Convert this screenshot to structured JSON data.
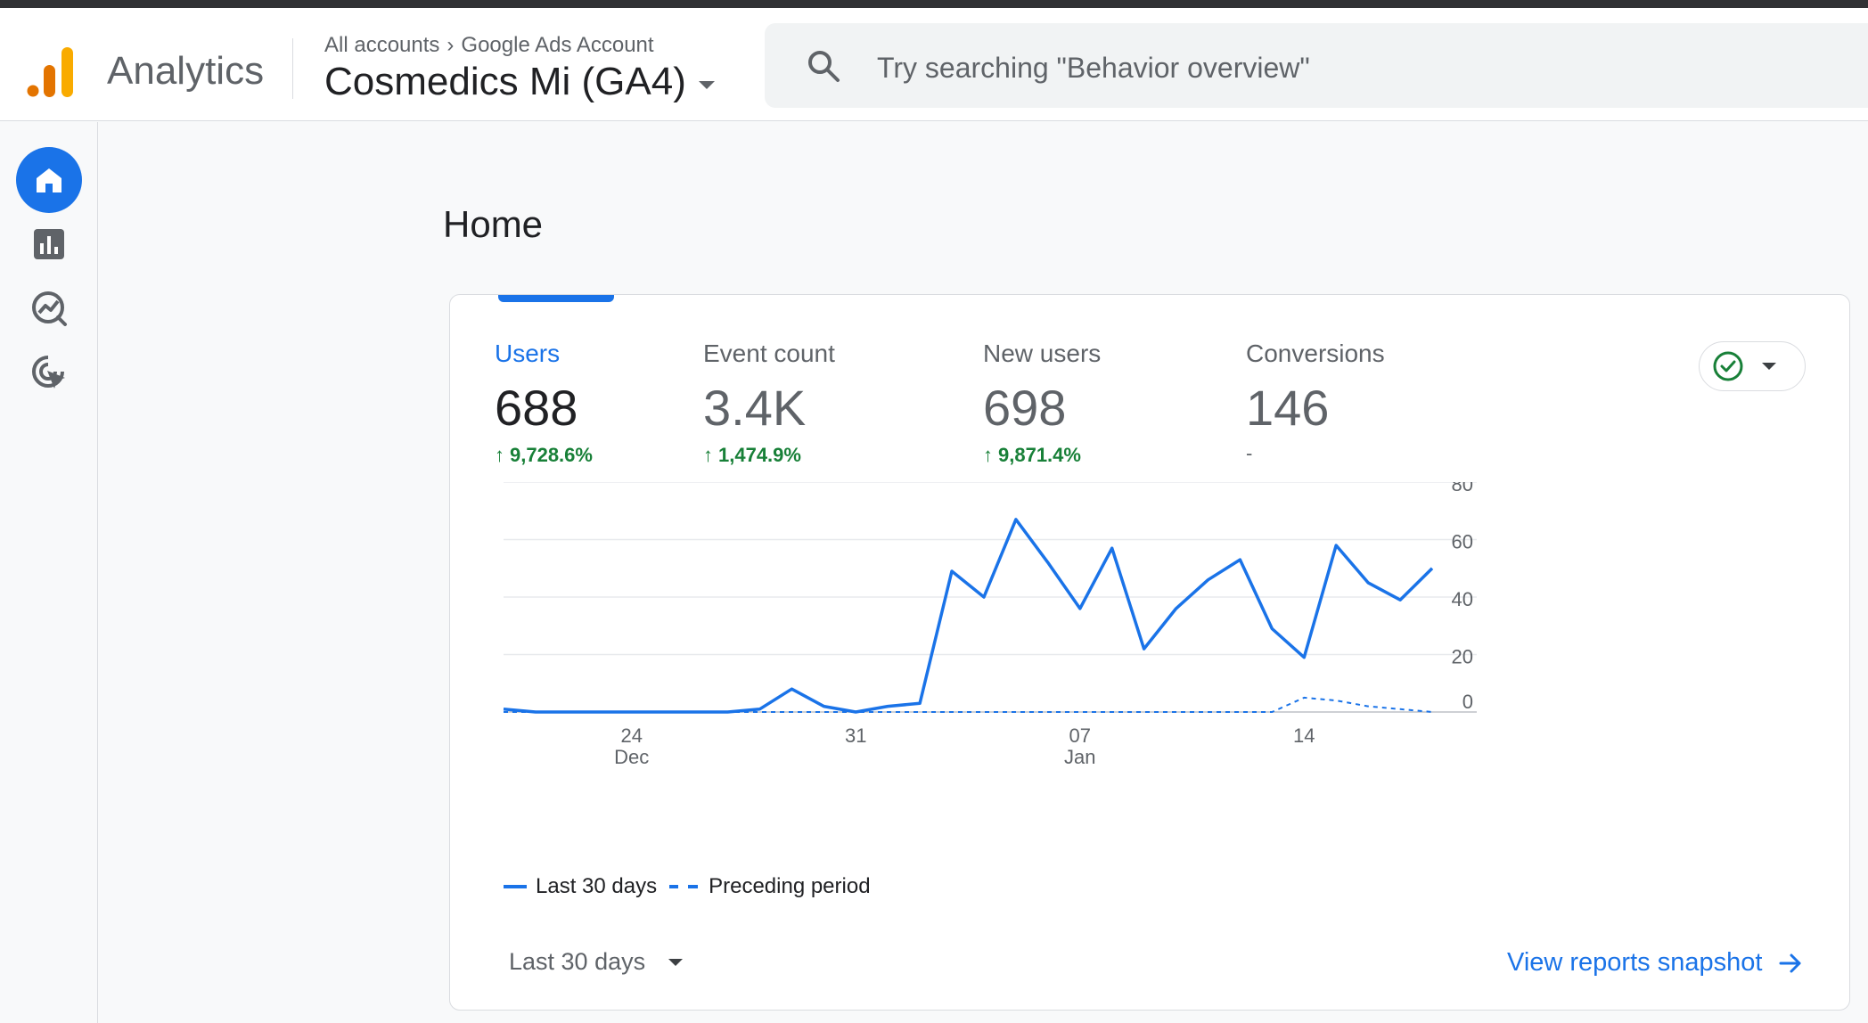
{
  "app": {
    "name": "Analytics"
  },
  "breadcrumb": {
    "all_accounts": "All accounts",
    "account": "Google Ads Account"
  },
  "property": {
    "name": "Cosmedics Mi (GA4)"
  },
  "search": {
    "placeholder": "Try searching \"Behavior overview\""
  },
  "nav_rail": [
    {
      "icon": "home-icon",
      "label": "Home",
      "active": true
    },
    {
      "icon": "reports-icon",
      "label": "Reports"
    },
    {
      "icon": "explore-icon",
      "label": "Explore"
    },
    {
      "icon": "advertising-icon",
      "label": "Advertising"
    }
  ],
  "page": {
    "title": "Home"
  },
  "metrics": [
    {
      "label": "Users",
      "value": "688",
      "delta": "9,728.6%"
    },
    {
      "label": "Event count",
      "value": "3.4K",
      "delta": "1,474.9%"
    },
    {
      "label": "New users",
      "value": "698",
      "delta": "9,871.4%"
    },
    {
      "label": "Conversions",
      "value": "146",
      "delta": "-"
    }
  ],
  "colors": {
    "accent": "#1a73e8",
    "positive": "#188038",
    "status_ok": "#188038"
  },
  "chart_data": {
    "type": "line",
    "x_ticks": [
      {
        "index": 4,
        "label": "24",
        "sublabel": "Dec"
      },
      {
        "index": 11,
        "label": "31",
        "sublabel": ""
      },
      {
        "index": 18,
        "label": "07",
        "sublabel": "Jan"
      },
      {
        "index": 25,
        "label": "14",
        "sublabel": ""
      }
    ],
    "ylim": [
      0,
      80
    ],
    "y_ticks": [
      0,
      20,
      40,
      60,
      80
    ],
    "grid": true,
    "legend_position": "bottom-left",
    "series": [
      {
        "name": "Last 30 days",
        "style": "solid",
        "values": [
          1,
          0,
          0,
          0,
          0,
          0,
          0,
          0,
          1,
          8,
          2,
          0,
          2,
          3,
          49,
          40,
          67,
          52,
          36,
          57,
          22,
          36,
          46,
          53,
          29,
          19,
          58,
          45,
          39,
          50
        ]
      },
      {
        "name": "Preceding period",
        "style": "dashed",
        "values": [
          0,
          0,
          0,
          0,
          0,
          0,
          0,
          0,
          0,
          0,
          0,
          0,
          0,
          0,
          0,
          0,
          0,
          0,
          0,
          0,
          0,
          0,
          0,
          0,
          0,
          5,
          4,
          2,
          1,
          0
        ]
      }
    ]
  },
  "legend": {
    "current": "Last 30 days",
    "previous": "Preceding period"
  },
  "footer": {
    "date_range": "Last 30 days",
    "snapshot_link": "View reports snapshot"
  }
}
